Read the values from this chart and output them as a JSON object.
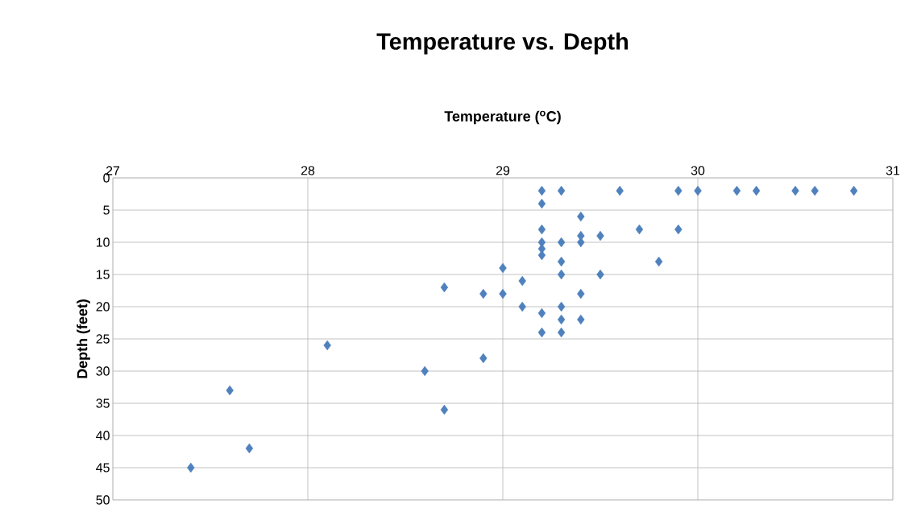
{
  "chart_data": {
    "type": "scatter",
    "title": "Temperature vs. Depth",
    "xlabel": "Temperature ($^{o}$C)",
    "ylabel": "Depth (feet)",
    "xlim": [
      27,
      31
    ],
    "xticks": [
      27,
      28,
      29,
      30,
      31
    ],
    "ylim": [
      50,
      0
    ],
    "yticks": [
      0,
      5,
      10,
      15,
      20,
      25,
      30,
      35,
      40,
      45,
      50
    ],
    "grid": true,
    "marker": "diamond",
    "series": [
      {
        "color": "#4f81bd",
        "x": [
          29.2,
          29.3,
          29.6,
          29.9,
          30.0,
          30.2,
          30.3,
          30.5,
          30.6,
          30.8,
          29.2,
          29.4,
          29.2,
          29.7,
          29.9,
          29.4,
          29.5,
          29.2,
          29.3,
          29.4,
          29.2,
          29.2,
          29.3,
          29.8,
          29.0,
          29.3,
          29.5,
          29.1,
          28.7,
          28.9,
          29.0,
          29.4,
          29.1,
          29.3,
          29.2,
          29.3,
          29.4,
          29.2,
          29.3,
          28.1,
          28.9,
          28.6,
          27.6,
          28.7,
          27.7,
          27.4
        ],
        "values": [
          2,
          2,
          2,
          2,
          2,
          2,
          2,
          2,
          2,
          2,
          4,
          6,
          8,
          8,
          8,
          9,
          9,
          10,
          10,
          10,
          11,
          12,
          13,
          13,
          14,
          15,
          15,
          16,
          17,
          18,
          18,
          18,
          20,
          20,
          21,
          22,
          22,
          24,
          24,
          26,
          28,
          30,
          33,
          36,
          42,
          45
        ]
      }
    ]
  }
}
